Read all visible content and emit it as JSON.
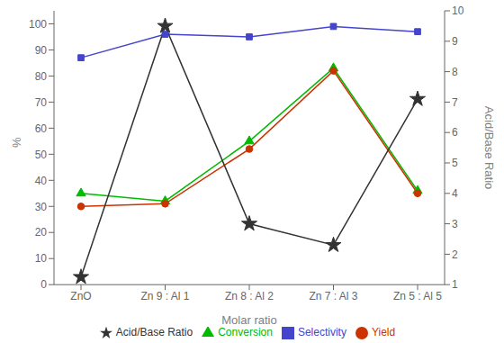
{
  "chart_data": {
    "type": "line",
    "xlabel": "Molar ratio",
    "ylabel": "%",
    "y2label": "Acid/Base Ratio",
    "categories": [
      "ZnO",
      "Zn 9 : Al 1",
      "Zn 8 : Al 2",
      "Zn 7 : Al 3",
      "Zn 5 : Al 5"
    ],
    "series": [
      {
        "name": "Conversion",
        "color": "#00bb00",
        "marker": "triangle",
        "line_style": "solid",
        "values": [
          35,
          32,
          55,
          83,
          36
        ]
      },
      {
        "name": "Selectivity",
        "color": "#4444cc",
        "marker": "square",
        "line_style": "solid",
        "values": [
          87,
          96,
          95,
          99,
          97
        ]
      },
      {
        "name": "Yield",
        "color": "#cc3300",
        "marker": "circle",
        "line_style": "solid",
        "values": [
          30,
          31,
          52,
          82,
          35
        ]
      },
      {
        "name": "Acid/Base Ratio",
        "color": "#333333",
        "marker": "star",
        "line_style": "solid",
        "axis": "y2",
        "values": [
          1.25,
          9.5,
          3.0,
          2.3,
          7.1
        ]
      }
    ],
    "ylim": [
      0,
      105
    ],
    "yticks": [
      0,
      10,
      20,
      30,
      40,
      50,
      60,
      70,
      80,
      90,
      100
    ],
    "y2lim": [
      1,
      10
    ],
    "y2ticks": [
      1,
      2,
      3,
      4,
      5,
      6,
      7,
      8,
      9,
      10
    ],
    "legend": "bottom"
  }
}
